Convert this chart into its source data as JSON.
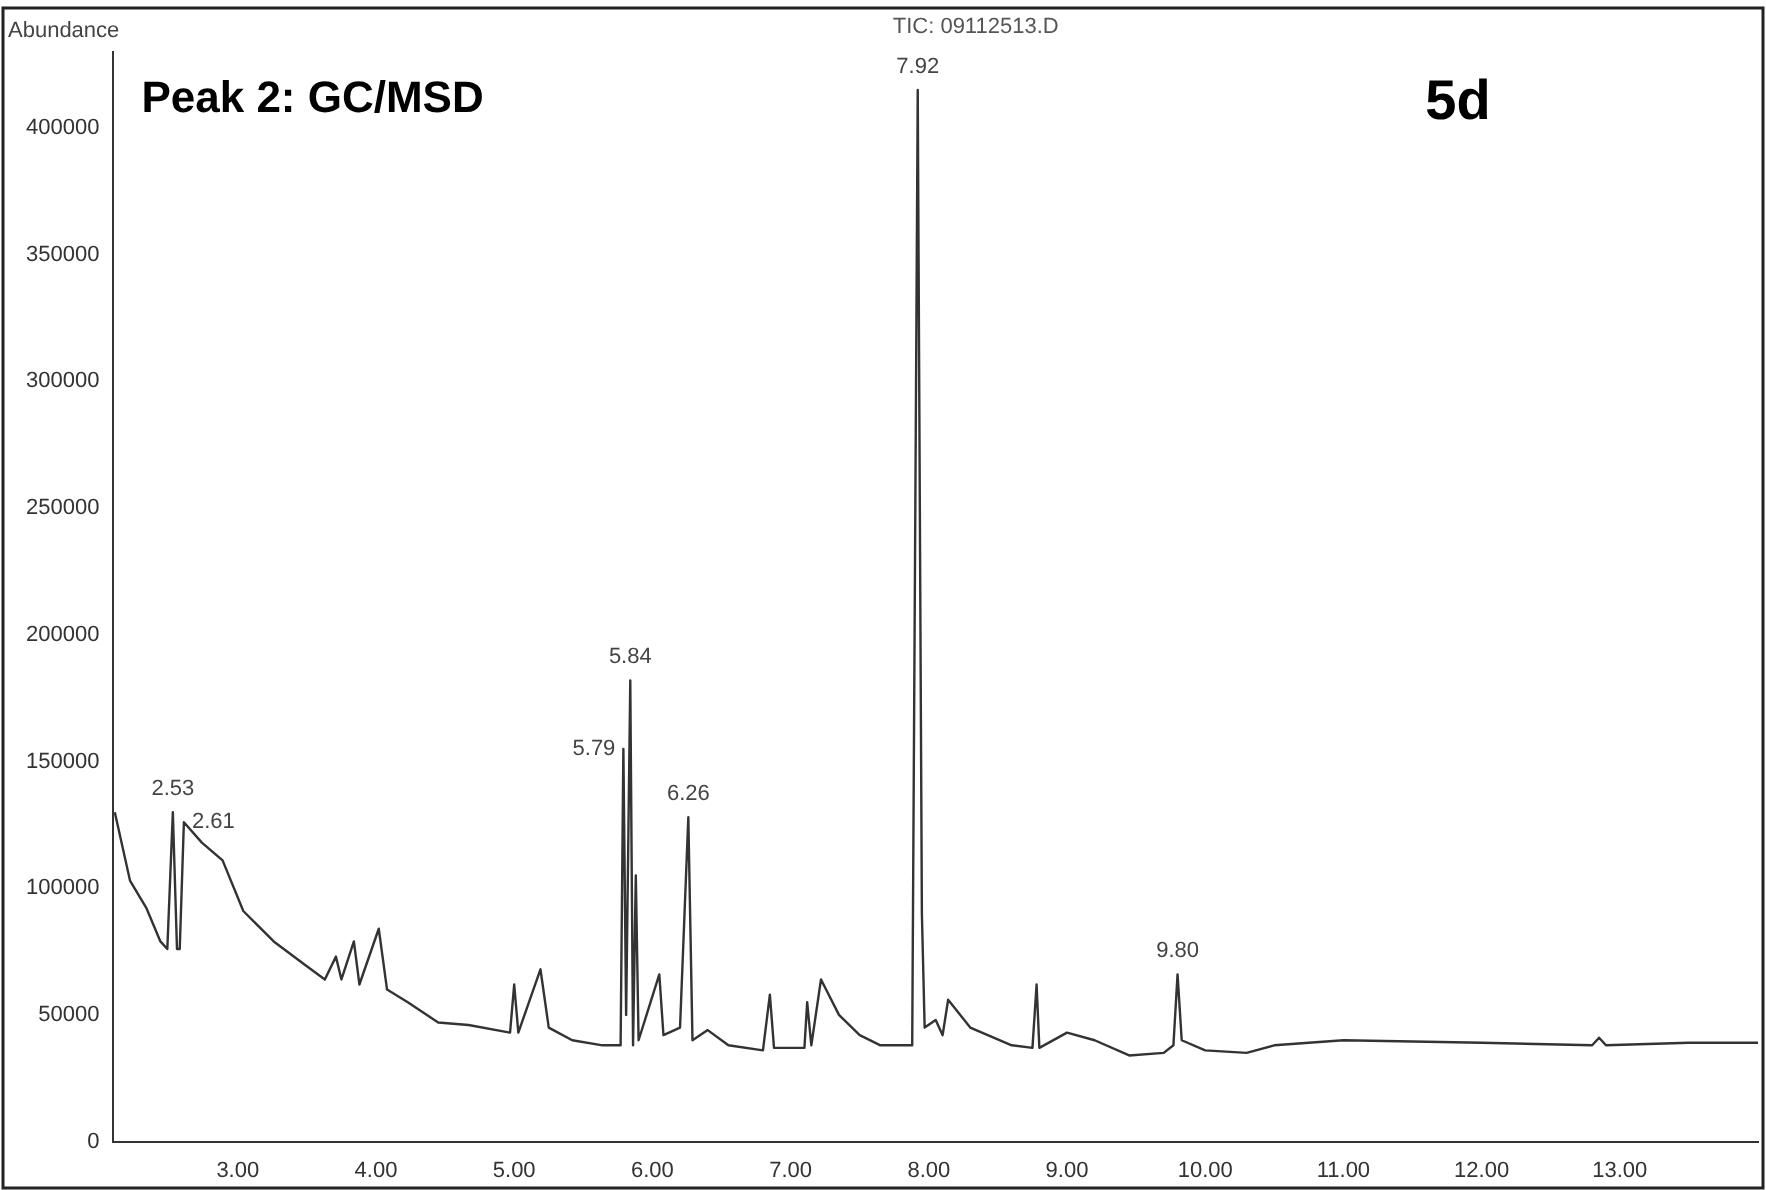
{
  "chart_data": {
    "type": "line",
    "title": "Peak 2: GC/MSD",
    "ylabel": "Abundance",
    "annotations": [
      "TIC: 09112513.D",
      "5d",
      {
        "text": "2.53",
        "x": 2.53,
        "y": 130000
      },
      {
        "text": "2.61",
        "x": 2.61,
        "y": 126000
      },
      {
        "text": "5.84",
        "x": 5.84,
        "y": 182000
      },
      {
        "text": "5.79",
        "x": 5.79,
        "y": 155000
      },
      {
        "text": "6.26",
        "x": 6.26,
        "y": 128000
      },
      {
        "text": "7.92",
        "x": 7.92,
        "y": 415000
      },
      {
        "text": "9.80",
        "x": 9.8,
        "y": 66000
      }
    ],
    "series": [
      {
        "color": "#333333",
        "x": [
          2.11,
          2.22,
          2.34,
          2.44,
          2.49,
          2.53,
          2.56,
          2.58,
          2.61,
          2.74,
          2.89,
          3.04,
          3.26,
          3.48,
          3.63,
          3.71,
          3.75,
          3.84,
          3.88,
          4.02,
          4.08,
          4.23,
          4.45,
          4.67,
          4.97,
          5.0,
          5.03,
          5.19,
          5.25,
          5.42,
          5.64,
          5.77,
          5.79,
          5.81,
          5.84,
          5.86,
          5.88,
          5.9,
          6.05,
          6.08,
          6.2,
          6.26,
          6.29,
          6.4,
          6.55,
          6.8,
          6.85,
          6.88,
          7.1,
          7.12,
          7.15,
          7.22,
          7.35,
          7.5,
          7.65,
          7.88,
          7.92,
          7.95,
          7.97,
          8.05,
          8.1,
          8.14,
          8.3,
          8.6,
          8.75,
          8.78,
          8.8,
          9.0,
          9.2,
          9.45,
          9.7,
          9.77,
          9.8,
          9.83,
          10.0,
          10.3,
          10.5,
          11.0,
          12.0,
          12.8,
          12.85,
          12.9,
          13.5,
          14.0
        ],
        "values": [
          130000,
          103000,
          92000,
          79000,
          76000,
          130000,
          76000,
          76000,
          126000,
          118000,
          111000,
          91000,
          79000,
          70000,
          64000,
          73000,
          64000,
          79000,
          62000,
          84000,
          60000,
          55000,
          47000,
          46000,
          43000,
          62000,
          43000,
          68000,
          45000,
          40000,
          38000,
          38000,
          155000,
          50000,
          182000,
          38000,
          105000,
          40000,
          66000,
          42000,
          45000,
          128000,
          40000,
          44000,
          38000,
          36000,
          58000,
          37000,
          37000,
          55000,
          38000,
          64000,
          50000,
          42000,
          38000,
          38000,
          415000,
          90000,
          45000,
          48000,
          42000,
          56000,
          45000,
          38000,
          37000,
          62000,
          37000,
          43000,
          40000,
          34000,
          35000,
          38000,
          66000,
          40000,
          36000,
          35000,
          38000,
          40000,
          39000,
          38000,
          41000,
          38000,
          39000,
          39000
        ]
      }
    ],
    "xlim": [
      2.1,
      14
    ],
    "xticks": [
      {
        "value": 3,
        "label": "3.00"
      },
      {
        "value": 4,
        "label": "4.00"
      },
      {
        "value": 5,
        "label": "5.00"
      },
      {
        "value": 6,
        "label": "6.00"
      },
      {
        "value": 7,
        "label": "7.00"
      },
      {
        "value": 8,
        "label": "8.00"
      },
      {
        "value": 9,
        "label": "9.00"
      },
      {
        "value": 10,
        "label": "10.00"
      },
      {
        "value": 11,
        "label": "11.00"
      },
      {
        "value": 12,
        "label": "12.00"
      },
      {
        "value": 13,
        "label": "13.00"
      }
    ],
    "ylim": [
      0,
      430000
    ],
    "yticks": [
      0,
      50000,
      100000,
      150000,
      200000,
      250000,
      300000,
      350000,
      400000
    ],
    "grid": false,
    "legend": false,
    "marker": "none",
    "line_style": "solid"
  }
}
